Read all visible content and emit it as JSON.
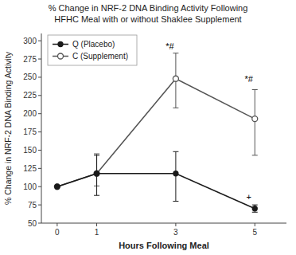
{
  "chart_data": {
    "type": "line",
    "title": "% Change in NRF-2 DNA Binding Activity Following\nHFHC Meal with or without Shaklee Supplement",
    "x_label": "Hours Following Meal",
    "y_label": "% Change in NRF-2 DNA Binding Activity",
    "x": [
      0,
      1,
      3,
      5
    ],
    "series": [
      {
        "name": "Q (Placebo)",
        "color": "#1a1a1a",
        "marker": "circle",
        "line_style": "solid",
        "values": [
          100,
          118,
          118,
          70
        ],
        "error_low": [
          0,
          30,
          38,
          5
        ],
        "error_high": [
          0,
          25,
          30,
          5
        ]
      },
      {
        "name": "C (Supplement)",
        "color": "#555555",
        "marker": "circle-open",
        "line_style": "solid",
        "values": [
          100,
          118,
          248,
          193
        ],
        "error_low": [
          0,
          17,
          40,
          50
        ],
        "error_high": [
          0,
          27,
          35,
          40
        ]
      }
    ],
    "xlim": [
      -0.4,
      5.8
    ],
    "xticks": [
      0,
      1,
      3,
      5
    ],
    "ylim": [
      50,
      310
    ],
    "yticks": [
      50,
      75,
      100,
      125,
      150,
      175,
      200,
      225,
      250,
      275,
      300
    ],
    "annotations": [
      {
        "text": "*#",
        "x": 2.85,
        "y": 288
      },
      {
        "text": "*#",
        "x": 4.85,
        "y": 243
      },
      {
        "text": "+",
        "x": 4.85,
        "y": 82
      }
    ],
    "legend": "upper-left",
    "grid": false
  }
}
